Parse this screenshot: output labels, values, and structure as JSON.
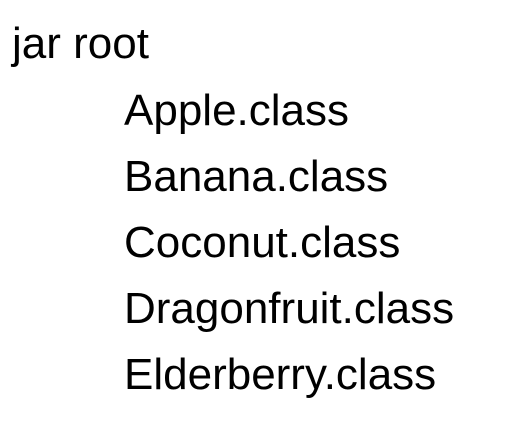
{
  "tree": {
    "root": "jar root",
    "children": [
      "Apple.class",
      "Banana.class",
      "Coconut.class",
      "Dragonfruit.class",
      "Elderberry.class"
    ]
  }
}
